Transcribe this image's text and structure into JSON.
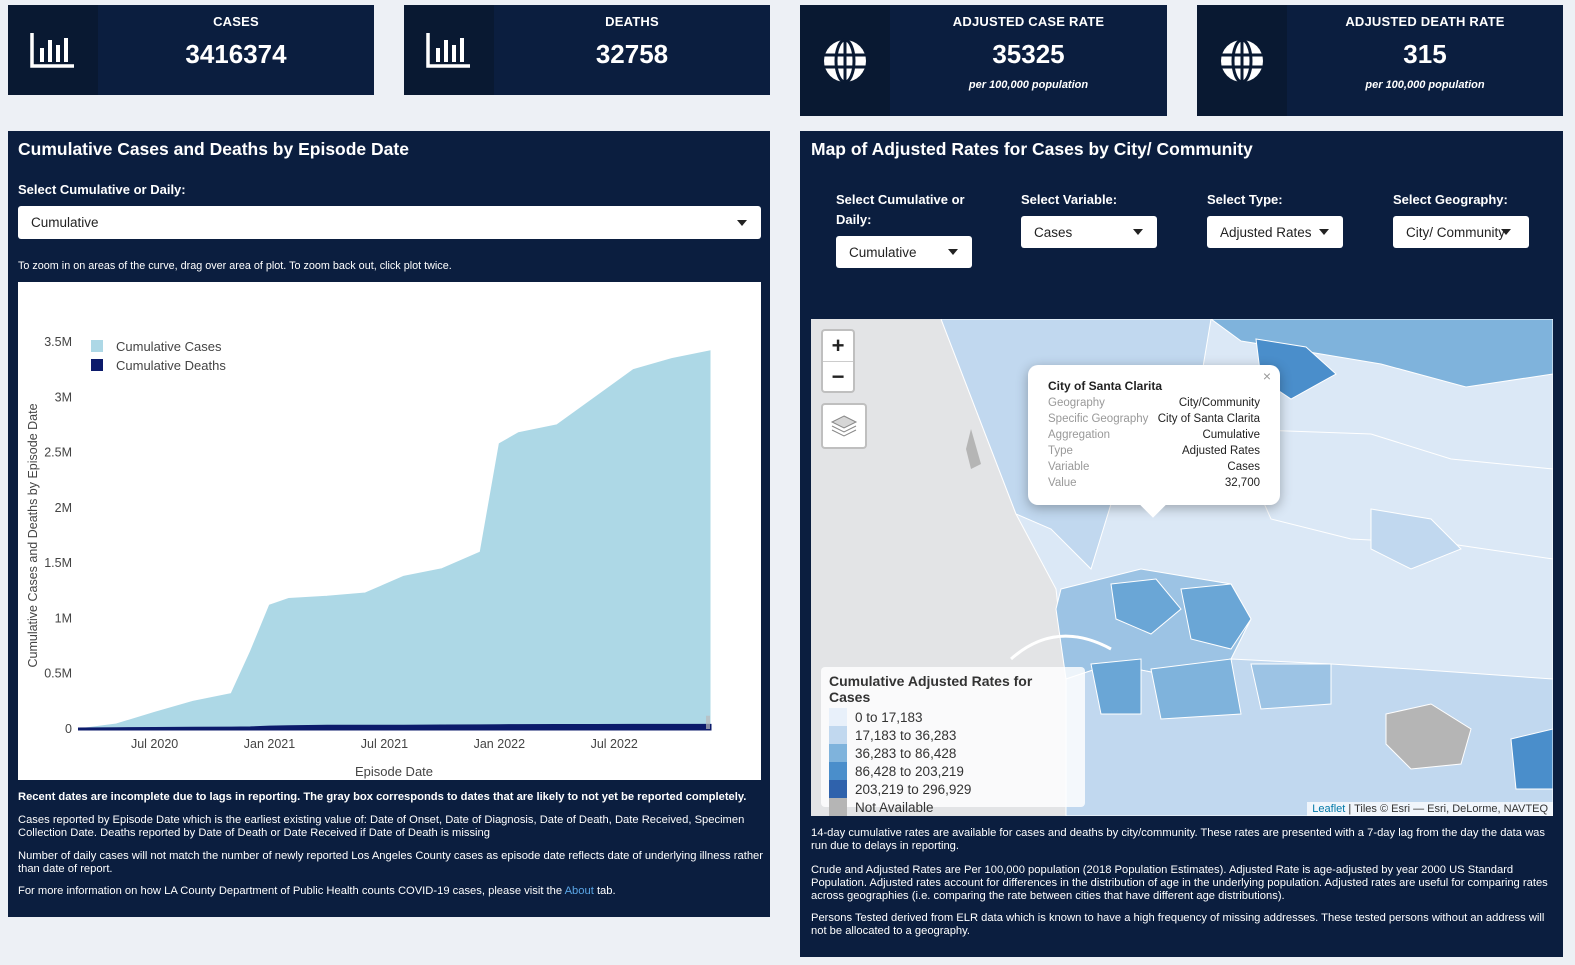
{
  "kpis": [
    {
      "label": "CASES",
      "value": "3416374",
      "sub": "",
      "icon": "bar-chart-icon"
    },
    {
      "label": "DEATHS",
      "value": "32758",
      "sub": "",
      "icon": "bar-chart-icon"
    },
    {
      "label": "ADJUSTED CASE RATE",
      "value": "35325",
      "sub": "per 100,000 population",
      "icon": "globe-icon"
    },
    {
      "label": "ADJUSTED DEATH RATE",
      "value": "315",
      "sub": "per 100,000 population",
      "icon": "globe-icon"
    }
  ],
  "left_panel": {
    "title": "Cumulative Cases and Deaths by Episode Date",
    "select_label": "Select Cumulative or Daily:",
    "select_value": "Cumulative",
    "hint": "To zoom in on areas of the curve, drag over area of plot. To zoom back out, click plot twice.",
    "notes": {
      "bold": "Recent dates are incomplete due to lags in reporting. The gray box corresponds to dates that are likely to not yet be reported completely.",
      "n1": "Cases reported by Episode Date which is the earliest existing value of: Date of Onset, Date of Diagnosis, Date of Death, Date Received, Specimen Collection Date. Deaths reported by Date of Death or Date Received if Date of Death is missing",
      "n2": "Number of daily cases will not match the number of newly reported Los Angeles County cases as episode date reflects date of underlying illness rather than date of report.",
      "n3_pre": "For more information on how LA County Department of Public Health counts COVID-19 cases, please visit the ",
      "n3_link": "About",
      "n3_post": " tab."
    }
  },
  "chart_data": {
    "type": "area",
    "title": "",
    "xlabel": "Episode Date",
    "ylabel": "Cumulative Cases and Deaths by Episode Date",
    "x_ticks": [
      "Jul 2020",
      "Jan 2021",
      "Jul 2021",
      "Jan 2022",
      "Jul 2022"
    ],
    "y_ticks": [
      "0",
      "0.5M",
      "1M",
      "1.5M",
      "2M",
      "2.5M",
      "3M",
      "3.5M"
    ],
    "ylim": [
      0,
      3500000
    ],
    "x": [
      "2020-03",
      "2020-05",
      "2020-07",
      "2020-09",
      "2020-11",
      "2020-12",
      "2021-01",
      "2021-02",
      "2021-04",
      "2021-06",
      "2021-08",
      "2021-10",
      "2021-12",
      "2022-01",
      "2022-02",
      "2022-04",
      "2022-06",
      "2022-08",
      "2022-10",
      "2022-12"
    ],
    "series": [
      {
        "name": "Cumulative Cases",
        "color": "#add8e6",
        "values": [
          0,
          45000,
          150000,
          250000,
          320000,
          700000,
          1120000,
          1180000,
          1200000,
          1230000,
          1380000,
          1450000,
          1600000,
          2580000,
          2680000,
          2750000,
          3000000,
          3250000,
          3350000,
          3420000
        ]
      },
      {
        "name": "Cumulative Deaths",
        "color": "#0c1b6b",
        "values": [
          0,
          2500,
          4500,
          6500,
          8000,
          10000,
          17000,
          21000,
          24000,
          24600,
          25500,
          27000,
          28000,
          29500,
          31000,
          31500,
          32000,
          32300,
          32600,
          32758
        ]
      }
    ],
    "legend": "top-left"
  },
  "right_panel": {
    "title": "Map of Adjusted Rates for Cases by City/ Community",
    "filters": [
      {
        "label": "Select Cumulative or Daily:",
        "value": "Cumulative"
      },
      {
        "label": "Select Variable:",
        "value": "Cases"
      },
      {
        "label": "Select Type:",
        "value": "Adjusted Rates"
      },
      {
        "label": "Select Geography:",
        "value": "City/ Community"
      }
    ],
    "map": {
      "zoom_in": "+",
      "zoom_out": "−",
      "popup": {
        "title": "City of Santa Clarita",
        "close": "×",
        "rows": [
          {
            "k": "Geography",
            "v": "City/Community"
          },
          {
            "k": "Specific Geography",
            "v": "City of Santa Clarita"
          },
          {
            "k": "Aggregation",
            "v": "Cumulative"
          },
          {
            "k": "Type",
            "v": "Adjusted Rates"
          },
          {
            "k": "Variable",
            "v": "Cases"
          },
          {
            "k": "Value",
            "v": "32,700"
          }
        ]
      },
      "legend": {
        "title": "Cumulative Adjusted Rates for Cases",
        "items": [
          {
            "label": "0 to 17,183",
            "color": "#e8f0fa"
          },
          {
            "label": "17,183 to 36,283",
            "color": "#c1d8ef"
          },
          {
            "label": "36,283 to 86,428",
            "color": "#7fb3dc"
          },
          {
            "label": "86,428 to 203,219",
            "color": "#4a8ecb"
          },
          {
            "label": "203,219 to 296,929",
            "color": "#2f62ac"
          },
          {
            "label": "Not Available",
            "color": "#b5b5b5"
          }
        ]
      },
      "attribution_link": "Leaflet",
      "attribution_text": " | Tiles © Esri — Esri, DeLorme, NAVTEQ"
    },
    "notes": {
      "n1": "14-day cumulative rates are available for cases and deaths by city/community. These rates are presented with a 7-day lag from the day the data was run due to delays in reporting.",
      "n2": "Crude and Adjusted Rates are Per 100,000 population (2018 Population Estimates). Adjusted Rate is age-adjusted by year 2000 US Standard Population. Adjusted rates account for differences in the distribution of age in the underlying population. Adjusted rates are useful for comparing rates across geographies (i.e. comparing the rate between cities that have different age distributions).",
      "n3": "Persons Tested derived from ELR data which is known to have a high frequency of missing addresses. These tested persons without an address will not be allocated to a geography."
    }
  }
}
